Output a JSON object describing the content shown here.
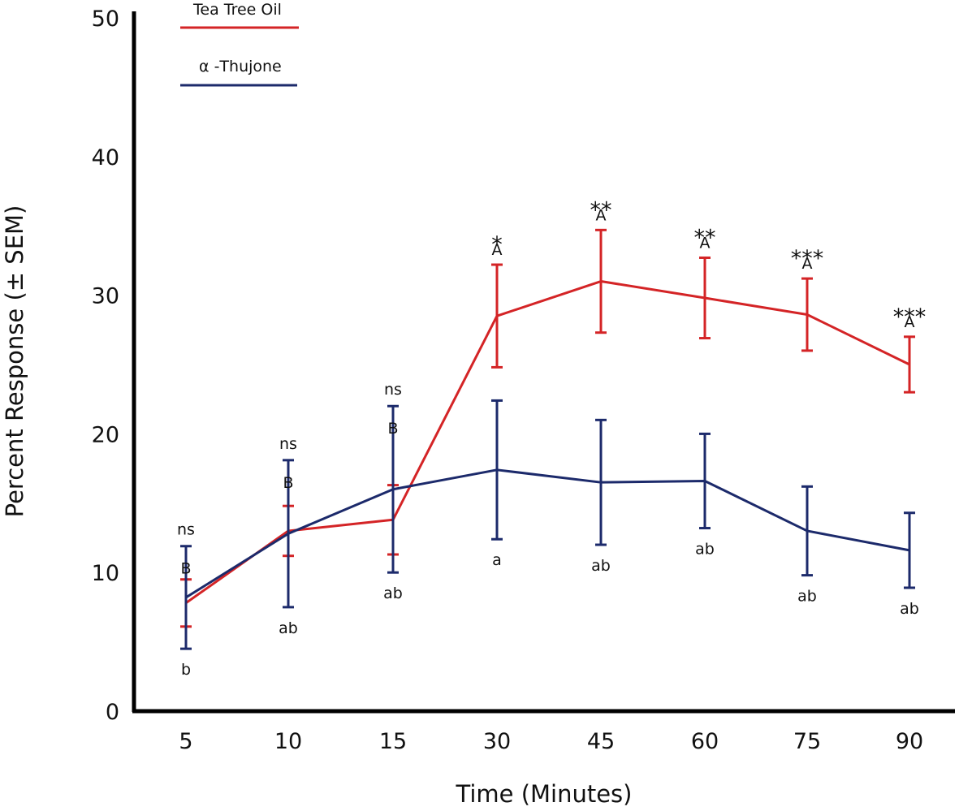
{
  "chart_data": {
    "type": "line",
    "title": "",
    "xlabel": "Time (Minutes)",
    "ylabel": "Percent Response (± SEM)",
    "categories": [
      "5",
      "10",
      "15",
      "30",
      "45",
      "60",
      "75",
      "90"
    ],
    "ylim": [
      0,
      50
    ],
    "yticks": [
      "0",
      "10",
      "20",
      "30",
      "40",
      "50"
    ],
    "grid": false,
    "legend_position": "top-left",
    "series": [
      {
        "name": "Tea Tree Oil",
        "color": "#d42426",
        "values": [
          7.8,
          13.0,
          13.8,
          28.5,
          31.0,
          29.8,
          28.6,
          25.0
        ],
        "sem": [
          1.7,
          1.8,
          2.5,
          3.7,
          3.7,
          2.9,
          2.6,
          2.0
        ],
        "group_labels": [
          "B",
          "B",
          "B",
          "A",
          "A",
          "A",
          "A",
          "A"
        ]
      },
      {
        "name": "α -Thujone",
        "color": "#1c2a6b",
        "values": [
          8.2,
          12.8,
          16.0,
          17.4,
          16.5,
          16.6,
          13.0,
          11.6
        ],
        "sem": [
          3.7,
          5.3,
          6.0,
          5.0,
          4.5,
          3.4,
          3.2,
          2.7
        ],
        "group_labels": [
          "b",
          "ab",
          "ab",
          "a",
          "ab",
          "ab",
          "ab",
          "ab"
        ]
      }
    ],
    "significance": [
      "ns",
      "ns",
      "ns",
      "*",
      "**",
      "**",
      "***",
      "***"
    ]
  }
}
